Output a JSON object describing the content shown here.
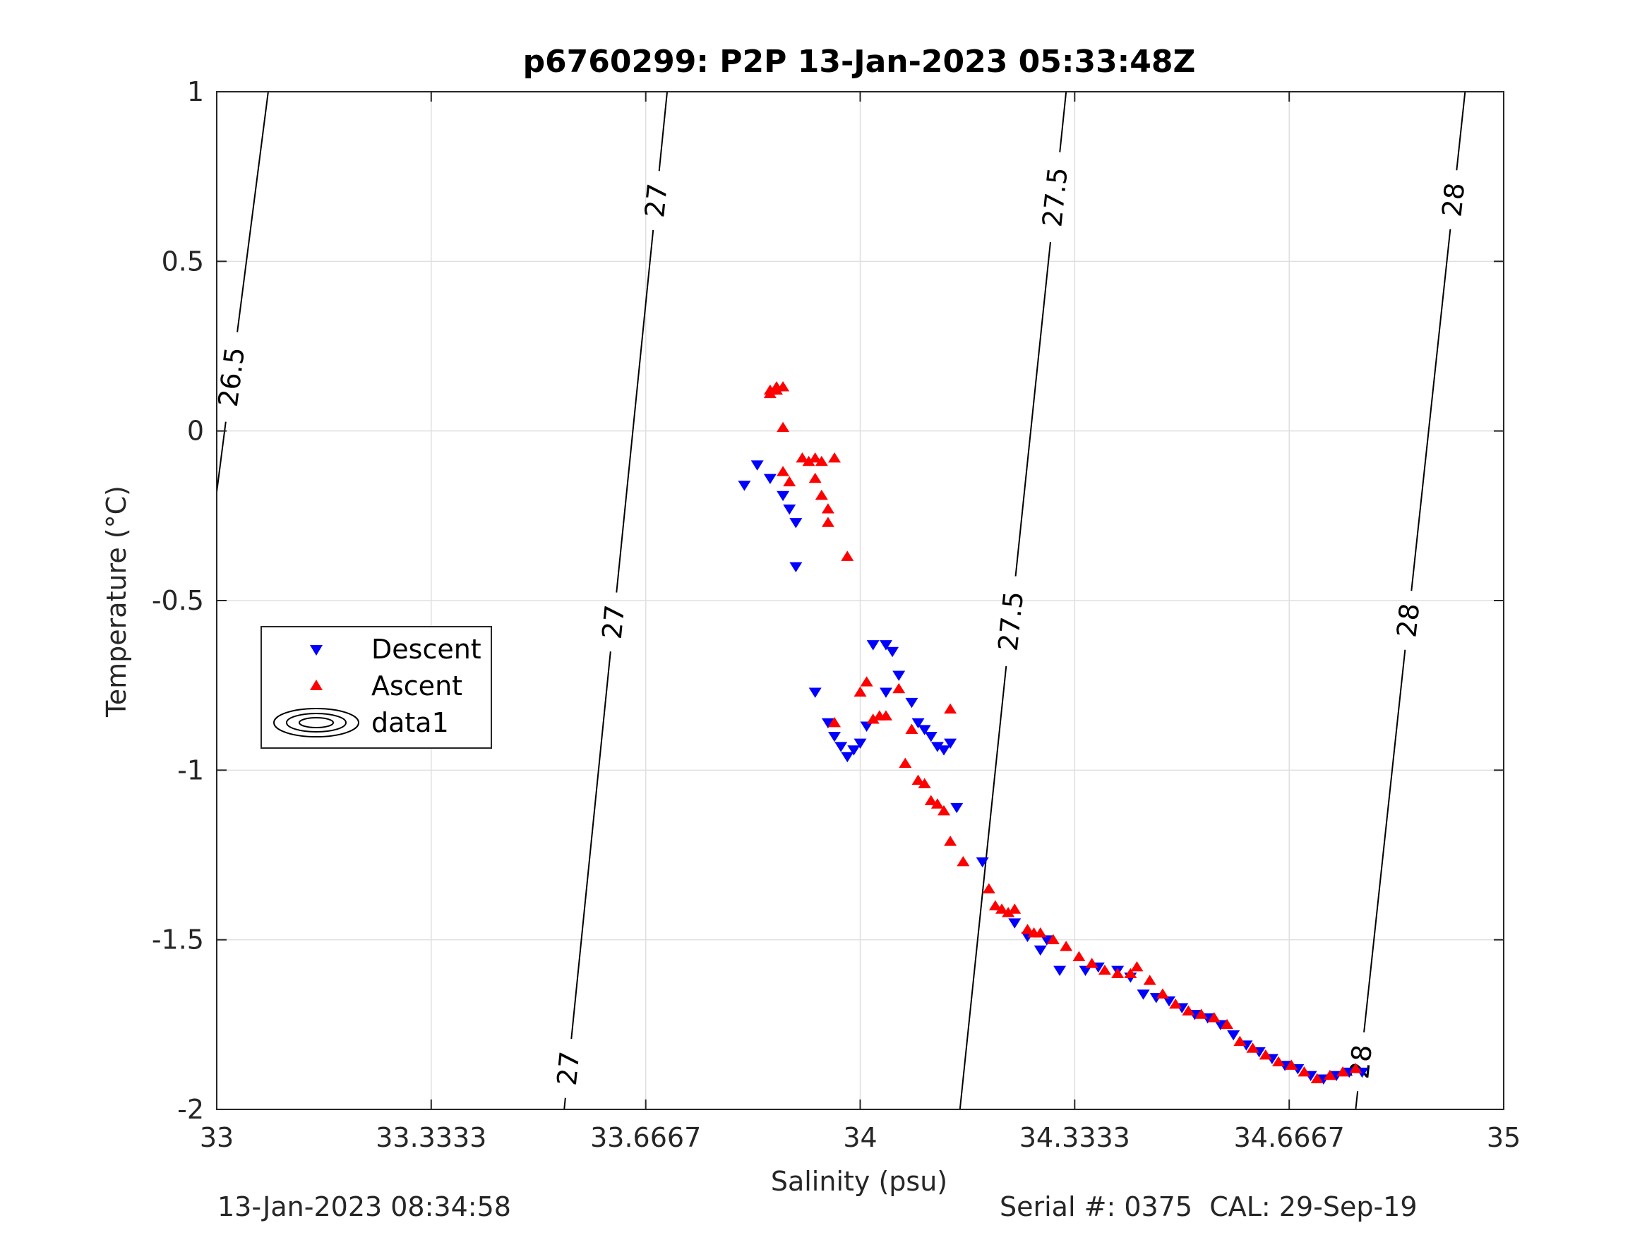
{
  "chart_data": {
    "type": "scatter",
    "title": "p6760299: P2P 13-Jan-2023 05:33:48Z",
    "xlabel": "Salinity (psu)",
    "ylabel": "Temperature (°C)",
    "xlim": [
      33,
      35
    ],
    "ylim": [
      -2,
      1
    ],
    "xticks": [
      33,
      33.3333,
      33.6667,
      34,
      34.3333,
      34.6667,
      35
    ],
    "xtick_labels": [
      "33",
      "33.3333",
      "33.6667",
      "34",
      "34.3333",
      "34.6667",
      "35"
    ],
    "yticks": [
      -2,
      -1.5,
      -1,
      -0.5,
      0,
      0.5,
      1
    ],
    "ytick_labels": [
      "-2",
      "-1.5",
      "-1",
      "-0.5",
      "0",
      "0.5",
      "1"
    ],
    "grid": true,
    "legend": {
      "placement": "left",
      "entries": [
        {
          "label": "Descent",
          "marker": "triangle-down",
          "color": "#0000ff"
        },
        {
          "label": "Ascent",
          "marker": "triangle-up",
          "color": "#ff0000"
        },
        {
          "label": "data1",
          "marker": "contour",
          "color": "#000000"
        }
      ]
    },
    "series": [
      {
        "name": "Descent",
        "color": "#0000ff",
        "marker": "triangle-down",
        "points": [
          [
            33.82,
            -0.16
          ],
          [
            33.84,
            -0.1
          ],
          [
            33.86,
            -0.14
          ],
          [
            33.88,
            -0.19
          ],
          [
            33.89,
            -0.23
          ],
          [
            33.9,
            -0.27
          ],
          [
            33.9,
            -0.4
          ],
          [
            33.93,
            -0.77
          ],
          [
            33.95,
            -0.86
          ],
          [
            33.96,
            -0.9
          ],
          [
            33.97,
            -0.93
          ],
          [
            33.98,
            -0.96
          ],
          [
            33.99,
            -0.94
          ],
          [
            34.0,
            -0.92
          ],
          [
            34.01,
            -0.87
          ],
          [
            34.02,
            -0.63
          ],
          [
            34.04,
            -0.63
          ],
          [
            34.05,
            -0.65
          ],
          [
            34.06,
            -0.72
          ],
          [
            34.04,
            -0.77
          ],
          [
            34.08,
            -0.8
          ],
          [
            34.09,
            -0.86
          ],
          [
            34.1,
            -0.88
          ],
          [
            34.11,
            -0.9
          ],
          [
            34.12,
            -0.93
          ],
          [
            34.13,
            -0.94
          ],
          [
            34.14,
            -0.92
          ],
          [
            34.15,
            -1.11
          ],
          [
            34.19,
            -1.27
          ],
          [
            34.24,
            -1.45
          ],
          [
            34.26,
            -1.49
          ],
          [
            34.28,
            -1.53
          ],
          [
            34.29,
            -1.5
          ],
          [
            34.31,
            -1.59
          ],
          [
            34.35,
            -1.59
          ],
          [
            34.37,
            -1.58
          ],
          [
            34.4,
            -1.59
          ],
          [
            34.42,
            -1.61
          ],
          [
            34.44,
            -1.66
          ],
          [
            34.46,
            -1.67
          ],
          [
            34.48,
            -1.68
          ],
          [
            34.5,
            -1.7
          ],
          [
            34.52,
            -1.72
          ],
          [
            34.54,
            -1.73
          ],
          [
            34.56,
            -1.75
          ],
          [
            34.58,
            -1.78
          ],
          [
            34.6,
            -1.81
          ],
          [
            34.62,
            -1.83
          ],
          [
            34.64,
            -1.85
          ],
          [
            34.66,
            -1.87
          ],
          [
            34.68,
            -1.88
          ],
          [
            34.7,
            -1.9
          ],
          [
            34.72,
            -1.91
          ],
          [
            34.74,
            -1.9
          ],
          [
            34.76,
            -1.89
          ],
          [
            34.78,
            -1.89
          ]
        ]
      },
      {
        "name": "Ascent",
        "color": "#ff0000",
        "marker": "triangle-up",
        "points": [
          [
            33.86,
            0.12
          ],
          [
            33.86,
            0.11
          ],
          [
            33.87,
            0.13
          ],
          [
            33.87,
            0.12
          ],
          [
            33.88,
            0.13
          ],
          [
            33.88,
            0.01
          ],
          [
            33.88,
            -0.12
          ],
          [
            33.89,
            -0.15
          ],
          [
            33.91,
            -0.08
          ],
          [
            33.92,
            -0.09
          ],
          [
            33.93,
            -0.08
          ],
          [
            33.93,
            -0.14
          ],
          [
            33.94,
            -0.09
          ],
          [
            33.94,
            -0.19
          ],
          [
            33.95,
            -0.23
          ],
          [
            33.95,
            -0.27
          ],
          [
            33.96,
            -0.08
          ],
          [
            33.98,
            -0.37
          ],
          [
            33.96,
            -0.86
          ],
          [
            34.0,
            -0.77
          ],
          [
            34.01,
            -0.74
          ],
          [
            34.02,
            -0.85
          ],
          [
            34.03,
            -0.84
          ],
          [
            34.04,
            -0.84
          ],
          [
            34.06,
            -0.76
          ],
          [
            34.07,
            -0.98
          ],
          [
            34.08,
            -0.88
          ],
          [
            34.09,
            -1.03
          ],
          [
            34.1,
            -1.04
          ],
          [
            34.11,
            -1.09
          ],
          [
            34.12,
            -1.1
          ],
          [
            34.13,
            -1.12
          ],
          [
            34.14,
            -0.82
          ],
          [
            34.14,
            -1.21
          ],
          [
            34.16,
            -1.27
          ],
          [
            34.2,
            -1.35
          ],
          [
            34.21,
            -1.4
          ],
          [
            34.22,
            -1.41
          ],
          [
            34.23,
            -1.42
          ],
          [
            34.24,
            -1.41
          ],
          [
            34.26,
            -1.47
          ],
          [
            34.27,
            -1.48
          ],
          [
            34.28,
            -1.48
          ],
          [
            34.3,
            -1.5
          ],
          [
            34.32,
            -1.52
          ],
          [
            34.34,
            -1.55
          ],
          [
            34.36,
            -1.57
          ],
          [
            34.38,
            -1.59
          ],
          [
            34.4,
            -1.6
          ],
          [
            34.42,
            -1.6
          ],
          [
            34.43,
            -1.58
          ],
          [
            34.45,
            -1.62
          ],
          [
            34.47,
            -1.66
          ],
          [
            34.49,
            -1.69
          ],
          [
            34.51,
            -1.71
          ],
          [
            34.53,
            -1.72
          ],
          [
            34.55,
            -1.73
          ],
          [
            34.57,
            -1.75
          ],
          [
            34.59,
            -1.8
          ],
          [
            34.61,
            -1.82
          ],
          [
            34.63,
            -1.84
          ],
          [
            34.65,
            -1.86
          ],
          [
            34.67,
            -1.87
          ],
          [
            34.69,
            -1.89
          ],
          [
            34.71,
            -1.91
          ],
          [
            34.73,
            -1.9
          ],
          [
            34.75,
            -1.89
          ],
          [
            34.77,
            -1.88
          ]
        ]
      }
    ],
    "isopycnals": [
      {
        "label": "26.5",
        "lines": [
          [
            33.0,
            -0.18
          ],
          [
            33.08,
            1.0
          ]
        ],
        "label_positions": [
          [
            33.02,
            0.16
          ]
        ]
      },
      {
        "label": "27",
        "lines": [
          [
            33.54,
            -2.0
          ],
          [
            33.7,
            1.0
          ]
        ],
        "label_positions": [
          [
            33.55,
            -1.88
          ],
          [
            33.6,
            -0.56
          ],
          [
            33.68,
            0.68
          ]
        ]
      },
      {
        "label": "27.5",
        "lines": [
          [
            34.155,
            -2.0
          ],
          [
            34.32,
            1.0
          ]
        ],
        "label_positions": [
          [
            34.23,
            -0.56
          ],
          [
            34.3,
            0.69
          ]
        ]
      },
      {
        "label": "28",
        "lines": [
          [
            34.77,
            -2.0
          ],
          [
            34.94,
            1.0
          ]
        ],
        "label_positions": [
          [
            34.78,
            -1.86
          ],
          [
            34.86,
            -0.56
          ],
          [
            34.93,
            0.68
          ]
        ]
      }
    ]
  },
  "footer": {
    "left": "13-Jan-2023 08:34:58",
    "right": "Serial #: 0375  CAL: 29-Sep-19"
  }
}
